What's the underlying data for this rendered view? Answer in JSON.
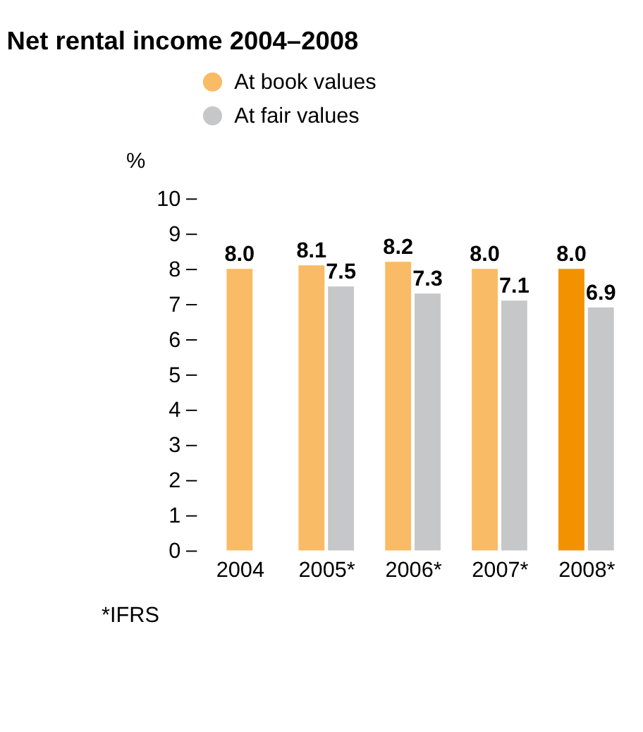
{
  "chart_data": {
    "type": "bar",
    "title": "Net rental income 2004–2008",
    "ylabel": "%",
    "categories": [
      "2004",
      "2005*",
      "2006*",
      "2007*",
      "2008*"
    ],
    "series": [
      {
        "name": "At book values",
        "color": "#f9bb65",
        "colors": [
          "#f9bb65",
          "#f9bb65",
          "#f9bb65",
          "#f9bb65",
          "#f39200"
        ],
        "values": [
          8.0,
          8.1,
          8.2,
          8.0,
          8.0
        ]
      },
      {
        "name": "At fair values",
        "color": "#c6c7c9",
        "values": [
          null,
          7.5,
          7.3,
          7.1,
          6.9
        ]
      }
    ],
    "ylim": [
      0,
      10
    ],
    "yticks": [
      0,
      1,
      2,
      3,
      4,
      5,
      6,
      7,
      8,
      9,
      10
    ],
    "value_labels": [
      [
        "8.0",
        "8.1",
        "8.2",
        "8.0",
        "8.0"
      ],
      [
        null,
        "7.5",
        "7.3",
        "7.1",
        "6.9"
      ]
    ],
    "grid": false,
    "legend": "top left",
    "annotations": [
      "*IFRS"
    ]
  }
}
